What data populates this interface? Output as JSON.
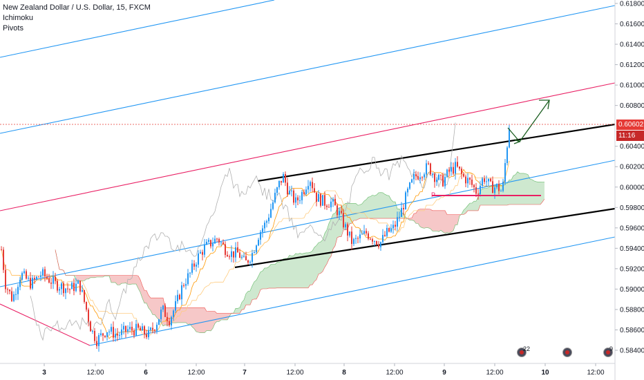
{
  "legend": {
    "title": "New Zealand Dollar / U.S. Dollar, 15, FXCM",
    "indicator1": "Ichimoku",
    "indicator2": "Pivots"
  },
  "price_axis": {
    "current_price": "0.60602",
    "countdown": "11:16",
    "ticks": [
      "0.61800",
      "0.61600",
      "0.61400",
      "0.61200",
      "0.61000",
      "0.60800",
      "0.60400",
      "0.60200",
      "0.60000",
      "0.59800",
      "0.59600",
      "0.59400",
      "0.59200",
      "0.59000",
      "0.58800",
      "0.58600",
      "0.58400"
    ]
  },
  "time_axis": {
    "ticks": [
      "3",
      "12:00",
      "6",
      "12:00",
      "7",
      "12:00",
      "8",
      "12:00",
      "9",
      "12:00",
      "10",
      "12:00"
    ]
  },
  "pivot_label": "P",
  "events": [
    {
      "count": "22"
    },
    {
      "count": ""
    },
    {
      "count": "9"
    }
  ],
  "colors": {
    "up_candle": "#2196f3",
    "down_candle": "#e53935",
    "pivot_line": "#e91e63",
    "channel_blue": "#2196f3",
    "channel_red": "#e91e63",
    "trend_black": "#000000",
    "arrow_green": "#1b5e20",
    "kumo_green": "#a5d6a7",
    "kumo_red": "#ef9a9a",
    "price_tag": "#e53935",
    "countdown_tag": "#c62828"
  },
  "chart_data": {
    "type": "candlestick",
    "symbol": "New Zealand Dollar / U.S. Dollar, 15, FXCM",
    "ylim": [
      0.5832,
      0.619
    ],
    "x_labels": [
      "3",
      "12:00",
      "6",
      "12:00",
      "7",
      "12:00",
      "8",
      "12:00",
      "9",
      "12:00",
      "10",
      "12:00"
    ],
    "last_price": 0.60602,
    "pivot_P": 0.5992,
    "price_path": [
      [
        0,
        0.595
      ],
      [
        8,
        0.5905
      ],
      [
        18,
        0.589
      ],
      [
        30,
        0.5915
      ],
      [
        45,
        0.5905
      ],
      [
        60,
        0.5915
      ],
      [
        80,
        0.5905
      ],
      [
        100,
        0.59
      ],
      [
        115,
        0.5905
      ],
      [
        125,
        0.588
      ],
      [
        132,
        0.586
      ],
      [
        140,
        0.585
      ],
      [
        155,
        0.586
      ],
      [
        170,
        0.5855
      ],
      [
        185,
        0.586
      ],
      [
        200,
        0.586
      ],
      [
        215,
        0.5855
      ],
      [
        225,
        0.5865
      ],
      [
        235,
        0.588
      ],
      [
        245,
        0.587
      ],
      [
        255,
        0.5885
      ],
      [
        265,
        0.5905
      ],
      [
        275,
        0.5915
      ],
      [
        285,
        0.593
      ],
      [
        295,
        0.594
      ],
      [
        305,
        0.5945
      ],
      [
        315,
        0.595
      ],
      [
        325,
        0.594
      ],
      [
        335,
        0.5935
      ],
      [
        345,
        0.5935
      ],
      [
        355,
        0.5925
      ],
      [
        365,
        0.5935
      ],
      [
        375,
        0.5955
      ],
      [
        385,
        0.5965
      ],
      [
        395,
        0.5985
      ],
      [
        405,
        0.6005
      ],
      [
        410,
        0.601
      ],
      [
        418,
        0.5995
      ],
      [
        428,
        0.5985
      ],
      [
        438,
        0.5995
      ],
      [
        448,
        0.601
      ],
      [
        458,
        0.599
      ],
      [
        470,
        0.5985
      ],
      [
        480,
        0.5985
      ],
      [
        490,
        0.5975
      ],
      [
        500,
        0.596
      ],
      [
        510,
        0.5945
      ],
      [
        520,
        0.595
      ],
      [
        530,
        0.5955
      ],
      [
        540,
        0.595
      ],
      [
        550,
        0.5945
      ],
      [
        560,
        0.5955
      ],
      [
        570,
        0.596
      ],
      [
        580,
        0.5975
      ],
      [
        590,
        0.5995
      ],
      [
        600,
        0.601
      ],
      [
        610,
        0.6015
      ],
      [
        620,
        0.602
      ],
      [
        630,
        0.601
      ],
      [
        640,
        0.6005
      ],
      [
        650,
        0.6015
      ],
      [
        660,
        0.602
      ],
      [
        670,
        0.601
      ],
      [
        680,
        0.6005
      ],
      [
        690,
        0.5995
      ],
      [
        700,
        0.601
      ],
      [
        710,
        0.6
      ],
      [
        720,
        0.6
      ],
      [
        727,
        0.5995
      ],
      [
        732,
        0.603
      ],
      [
        737,
        0.606
      ]
    ],
    "extra_lines": [
      {
        "name": "red channel",
        "color": "#e91e63"
      },
      {
        "name": "blue channel",
        "color": "#2196f3"
      },
      {
        "name": "black channel",
        "color": "#000000"
      }
    ]
  }
}
